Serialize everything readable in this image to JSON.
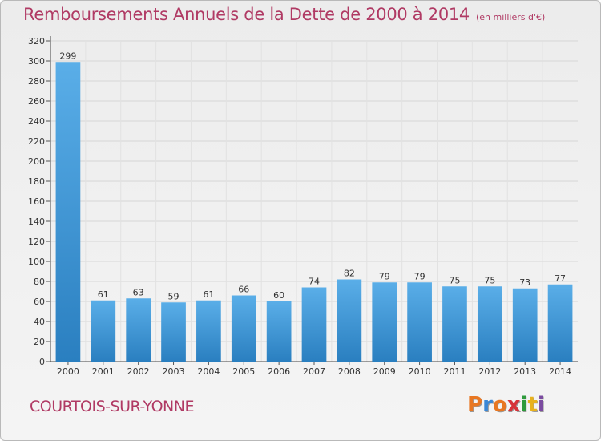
{
  "header": {
    "title": "Remboursements Annuels de la Dette de 2000 à 2014",
    "subtitle": "(en milliers d'€)"
  },
  "footer": {
    "city": "COURTOIS-SUR-YONNE",
    "brand": "Proxiti",
    "brand_colors": [
      "#e87722",
      "#3b88d6",
      "#e87722",
      "#d6343a",
      "#2e9a3c",
      "#e8b21e",
      "#7b4ba0"
    ]
  },
  "chart_data": {
    "type": "bar",
    "title": "Remboursements Annuels de la Dette de 2000 à 2014",
    "categories": [
      "2000",
      "2001",
      "2002",
      "2003",
      "2004",
      "2005",
      "2006",
      "2007",
      "2008",
      "2009",
      "2010",
      "2011",
      "2012",
      "2013",
      "2014"
    ],
    "values": [
      299,
      61,
      63,
      59,
      61,
      66,
      60,
      74,
      82,
      79,
      79,
      75,
      75,
      73,
      77
    ],
    "ylim": [
      0,
      320
    ],
    "yticks": [
      0,
      20,
      40,
      60,
      80,
      100,
      120,
      140,
      160,
      180,
      200,
      220,
      240,
      260,
      280,
      300,
      320
    ],
    "grid": true,
    "bar_color_top": "#5aaee8",
    "bar_color_bottom": "#2a7fc0",
    "title_color": "#b03a64"
  }
}
